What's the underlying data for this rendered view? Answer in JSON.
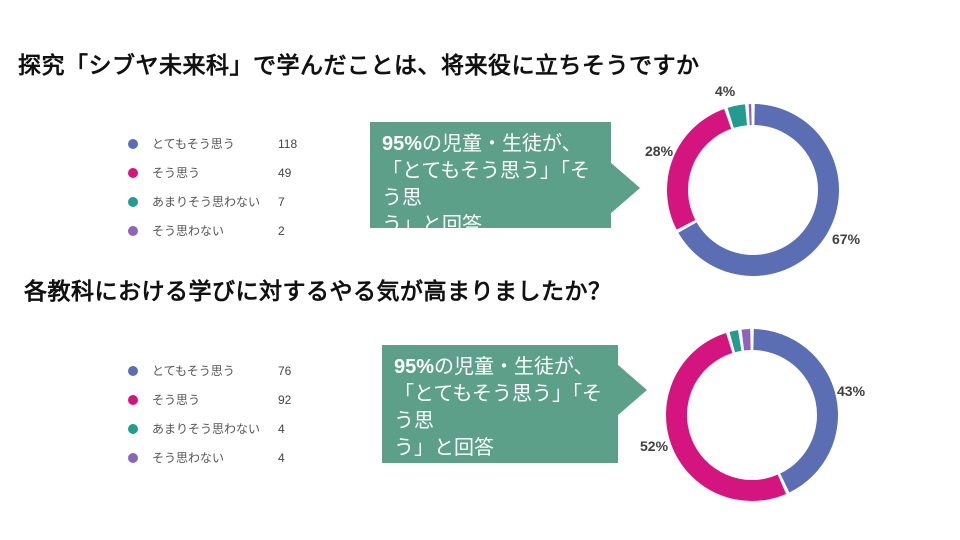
{
  "sections": [
    {
      "title": "探究「シブヤ未来科」で学んだことは、将来役に立ちそうですか"
    },
    {
      "title": "各教科における学びに対するやる気が高まりましたか？"
    }
  ],
  "callout": {
    "line1_bold": "95%",
    "line1_rest": "の児童・生徒が、",
    "line2": "「とてもそう思う」「そう思",
    "line3": "う」と回答"
  },
  "colors": {
    "very_agree": "#5B6DB3",
    "agree": "#D5157F",
    "not_really_agree": "#239B8E",
    "disagree": "#8B66B8",
    "callout_bg": "#5DA08A",
    "pct_label": "#404040"
  },
  "chart_data": [
    {
      "type": "pie",
      "subtype": "donut",
      "title": "探究「シブヤ未来科」で学んだことは、将来役に立ちそうですか",
      "categories": [
        "とてもそう思う",
        "そう思う",
        "あまりそう思わない",
        "そう思わない"
      ],
      "values": [
        118,
        49,
        7,
        2
      ],
      "colors": [
        "#5B6DB3",
        "#D5157F",
        "#239B8E",
        "#8B66B8"
      ],
      "percent_labels": [
        "67%",
        "28%",
        "4%",
        ""
      ],
      "legend_position": "left",
      "start_angle_deg": 0,
      "direction": "clockwise"
    },
    {
      "type": "pie",
      "subtype": "donut",
      "title": "各教科における学びに対するやる気が高まりましたか？",
      "categories": [
        "とてもそう思う",
        "そう思う",
        "あまりそう思わない",
        "そう思わない"
      ],
      "values": [
        76,
        92,
        4,
        4
      ],
      "colors": [
        "#5B6DB3",
        "#D5157F",
        "#239B8E",
        "#8B66B8"
      ],
      "percent_labels": [
        "43%",
        "52%",
        "",
        ""
      ],
      "legend_position": "left",
      "start_angle_deg": 0,
      "direction": "clockwise"
    }
  ]
}
